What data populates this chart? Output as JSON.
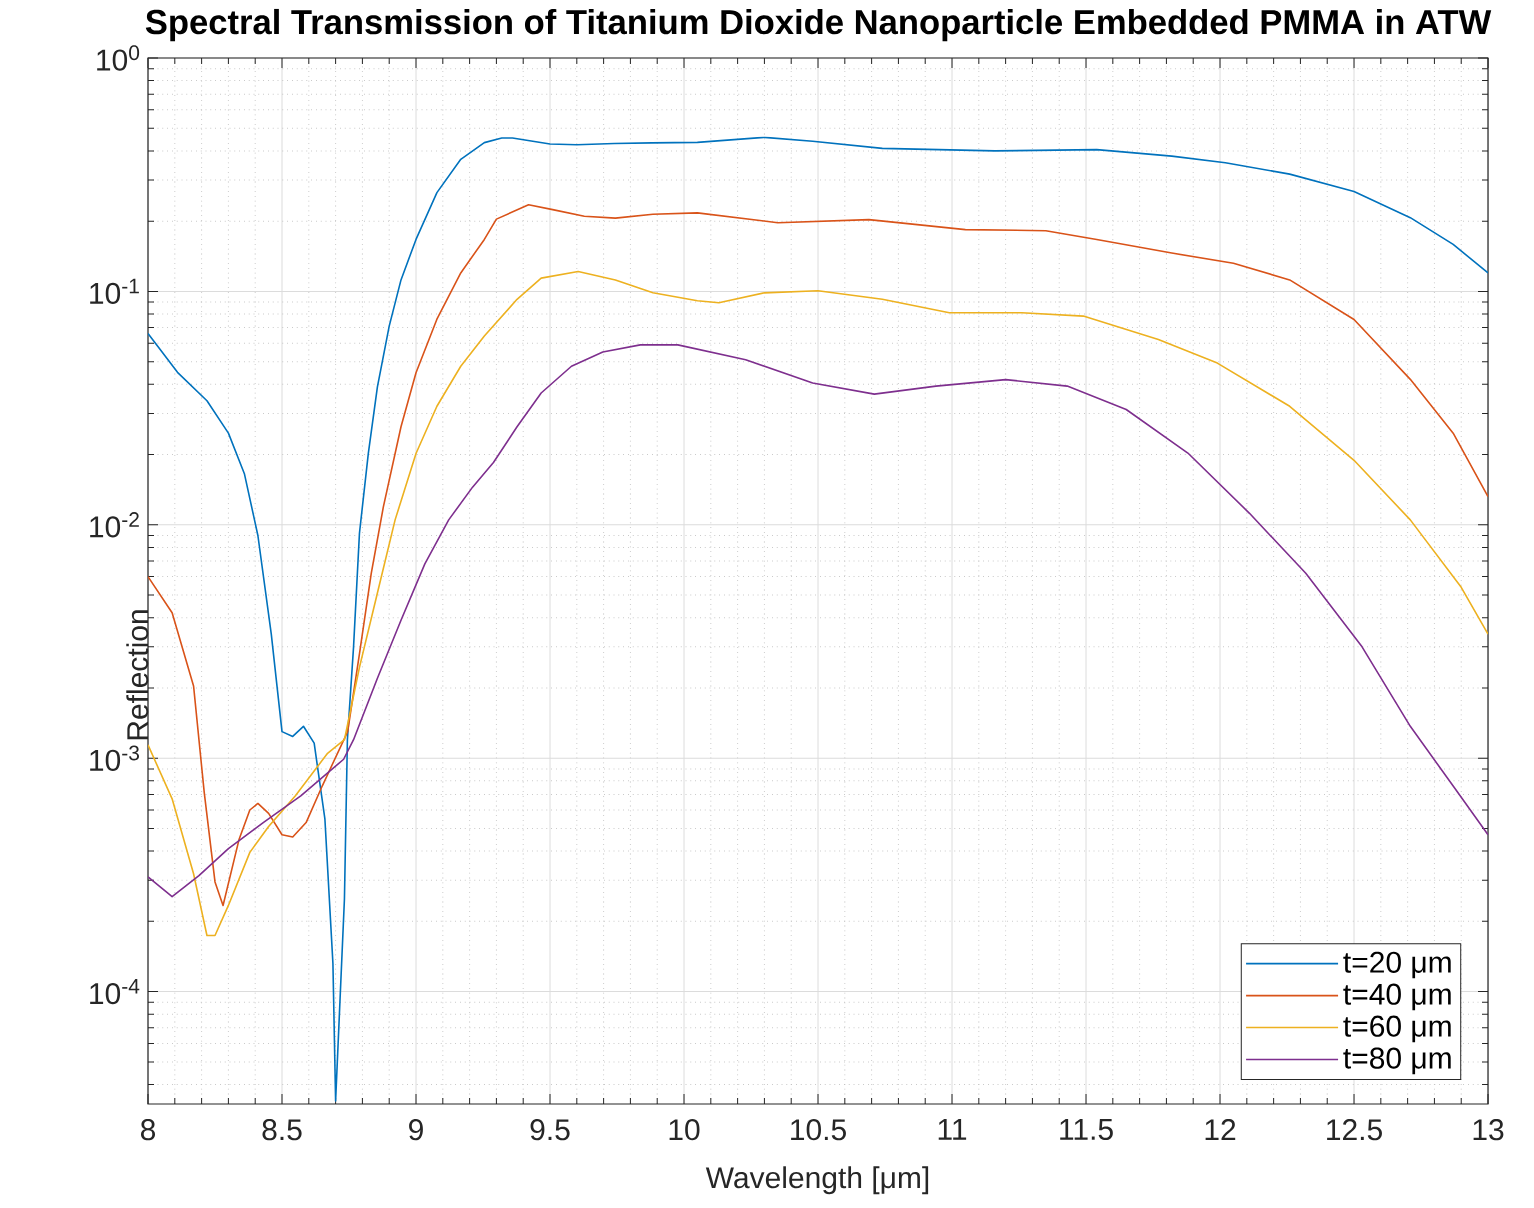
{
  "chart_data": {
    "type": "line",
    "title": "Spectral Transmission of Titanium Dioxide Nanoparticle Embedded PMMA in ATW",
    "xlabel": "Wavelength [μm]",
    "ylabel": "Reflection",
    "xlim": [
      8,
      13
    ],
    "ylim": [
      3.3e-05,
      1
    ],
    "xticks": [
      8,
      8.5,
      9,
      9.5,
      10,
      10.5,
      11,
      11.5,
      12,
      12.5,
      13
    ],
    "yticks": [
      {
        "value": 0.0001,
        "label": "10$^{-4}$"
      },
      {
        "value": 0.001,
        "label": "10$^{-3}$"
      },
      {
        "value": 0.01,
        "label": "10$^{-2}$"
      },
      {
        "value": 0.1,
        "label": "10$^{-1}$"
      },
      {
        "value": 1,
        "label": "10$^{0}$"
      }
    ],
    "log": true,
    "grid": true,
    "legend": "bottom right",
    "series": [
      {
        "name": "t=20 μm",
        "color": "#0072bd",
        "x": [
          8.0,
          8.11,
          8.22,
          8.3,
          8.36,
          8.41,
          8.46,
          8.5,
          8.54,
          8.58,
          8.62,
          8.66,
          8.69,
          8.7,
          8.733,
          8.744,
          8.767,
          8.789,
          8.822,
          8.856,
          8.9,
          8.944,
          9.0,
          9.078,
          9.167,
          9.255,
          9.32,
          9.36,
          9.5,
          9.6,
          9.74,
          9.88,
          10.05,
          10.3,
          10.48,
          10.74,
          11.16,
          11.54,
          11.82,
          12.02,
          12.26,
          12.5,
          12.71,
          12.87,
          13.0
        ],
        "values": [
          0.066,
          0.045,
          0.034,
          0.0247,
          0.0165,
          0.009,
          0.0034,
          0.0013,
          0.00124,
          0.00137,
          0.00116,
          0.00055,
          0.000132,
          3.4e-05,
          0.00025,
          0.0012,
          0.003,
          0.0092,
          0.0202,
          0.039,
          0.071,
          0.112,
          0.167,
          0.265,
          0.368,
          0.434,
          0.454,
          0.454,
          0.428,
          0.425,
          0.43,
          0.433,
          0.435,
          0.457,
          0.44,
          0.41,
          0.4,
          0.405,
          0.38,
          0.356,
          0.318,
          0.268,
          0.207,
          0.159,
          0.12
        ]
      },
      {
        "name": "t=40 μm",
        "color": "#d95319",
        "x": [
          8.0,
          8.09,
          8.17,
          8.21,
          8.25,
          8.28,
          8.34,
          8.38,
          8.41,
          8.45,
          8.5,
          8.54,
          8.59,
          8.65,
          8.745,
          8.789,
          8.833,
          8.878,
          8.944,
          9.0,
          9.078,
          9.167,
          9.255,
          9.3,
          9.42,
          9.51,
          9.628,
          9.744,
          9.884,
          10.05,
          10.35,
          10.69,
          11.05,
          11.35,
          11.54,
          11.82,
          12.05,
          12.26,
          12.5,
          12.71,
          12.87,
          13.0
        ],
        "values": [
          0.006,
          0.0042,
          0.00204,
          0.00071,
          0.000295,
          0.000234,
          0.00045,
          0.0006,
          0.00064,
          0.00058,
          0.00047,
          0.00046,
          0.00053,
          0.00076,
          0.0013,
          0.0028,
          0.0062,
          0.0119,
          0.0263,
          0.0448,
          0.076,
          0.12,
          0.167,
          0.204,
          0.235,
          0.224,
          0.21,
          0.206,
          0.214,
          0.217,
          0.197,
          0.203,
          0.184,
          0.182,
          0.167,
          0.146,
          0.132,
          0.112,
          0.0758,
          0.042,
          0.0247,
          0.0132
        ]
      },
      {
        "name": "t=60 μm",
        "color": "#edb120",
        "x": [
          8.0,
          8.09,
          8.17,
          8.22,
          8.25,
          8.3,
          8.38,
          8.45,
          8.55,
          8.67,
          8.733,
          8.789,
          8.856,
          8.922,
          9.0,
          9.078,
          9.167,
          9.255,
          9.377,
          9.467,
          9.605,
          9.744,
          9.884,
          10.05,
          10.13,
          10.3,
          10.5,
          10.74,
          10.99,
          11.26,
          11.49,
          11.77,
          11.99,
          12.26,
          12.5,
          12.71,
          12.9,
          13.0
        ],
        "values": [
          0.00114,
          0.00067,
          0.00032,
          0.000174,
          0.000174,
          0.000234,
          0.000395,
          0.00051,
          0.00069,
          0.00105,
          0.0012,
          0.00245,
          0.0051,
          0.0105,
          0.0202,
          0.0322,
          0.0478,
          0.0644,
          0.0925,
          0.114,
          0.1217,
          0.112,
          0.0986,
          0.0912,
          0.0894,
          0.0986,
          0.1007,
          0.0925,
          0.081,
          0.081,
          0.0784,
          0.0622,
          0.0493,
          0.0322,
          0.0189,
          0.0105,
          0.0054,
          0.0034
        ]
      },
      {
        "name": "t=80 μm",
        "color": "#7e2f8e",
        "x": [
          8.0,
          8.09,
          8.19,
          8.3,
          8.43,
          8.57,
          8.73,
          8.767,
          8.856,
          8.944,
          9.033,
          9.122,
          9.211,
          9.289,
          9.377,
          9.467,
          9.58,
          9.697,
          9.837,
          9.977,
          10.23,
          10.48,
          10.71,
          10.94,
          11.2,
          11.43,
          11.65,
          11.88,
          12.11,
          12.32,
          12.53,
          12.71,
          12.87,
          13.0
        ],
        "values": [
          0.00031,
          0.000255,
          0.000314,
          0.00041,
          0.00053,
          0.00069,
          0.00099,
          0.0012,
          0.0022,
          0.0039,
          0.0068,
          0.0105,
          0.0145,
          0.0185,
          0.0263,
          0.0367,
          0.0478,
          0.055,
          0.059,
          0.059,
          0.051,
          0.0405,
          0.0363,
          0.0393,
          0.0419,
          0.0393,
          0.0312,
          0.0203,
          0.0112,
          0.0062,
          0.003,
          0.00137,
          0.00076,
          0.00047
        ]
      }
    ]
  }
}
